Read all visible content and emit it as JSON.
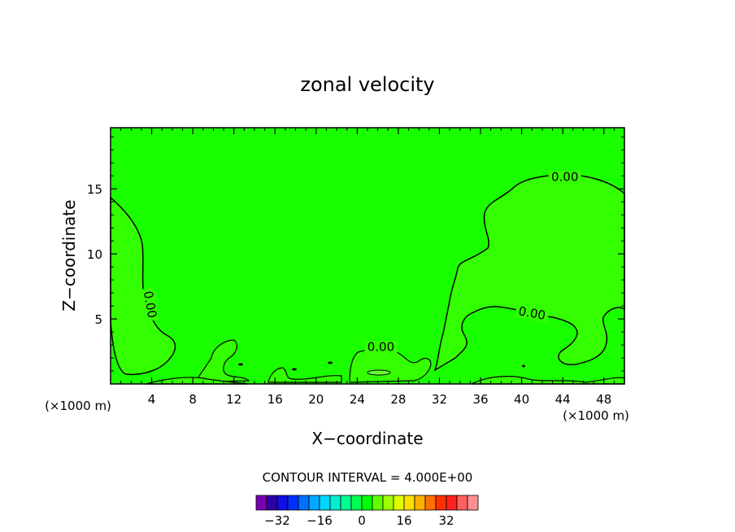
{
  "chart_data": {
    "type": "contour",
    "title": "zonal velocity",
    "xlabel": "X−coordinate",
    "ylabel": "Z−coordinate",
    "x_unit_left": "(×1000 m)",
    "x_unit_right": "(×1000 m)",
    "xlim": [
      0,
      50
    ],
    "ylim": [
      0,
      19.7
    ],
    "x_ticks": [
      4,
      8,
      12,
      16,
      20,
      24,
      28,
      32,
      36,
      40,
      44,
      48
    ],
    "x_ticklabels": [
      "4",
      "8",
      "12",
      "16",
      "20",
      "24",
      "28",
      "32",
      "36",
      "40",
      "44",
      "48"
    ],
    "y_ticks": [
      5,
      10,
      15
    ],
    "y_ticklabels": [
      "5",
      "10",
      "15"
    ],
    "contour_labels": [
      {
        "text": "0.00",
        "x": 44.2,
        "y": 15.9,
        "rotate": 0
      },
      {
        "text": "0.00",
        "x": 41.0,
        "y": 5.4,
        "rotate": 10
      },
      {
        "text": "0.00",
        "x": 26.3,
        "y": 2.8,
        "rotate": 0
      },
      {
        "text": "0.00",
        "x": 3.8,
        "y": 6.1,
        "rotate": 80
      }
    ],
    "contour_interval_text": "CONTOUR INTERVAL = 4.000E+00",
    "colorbar": {
      "colors": [
        "#7a00b3",
        "#2a00a8",
        "#1010e0",
        "#0030ff",
        "#0070ff",
        "#00a8ff",
        "#00d8ff",
        "#00f0d0",
        "#00ff90",
        "#00ff50",
        "#00ff00",
        "#60ff00",
        "#a0ff00",
        "#e0ff00",
        "#ffe000",
        "#ffb000",
        "#ff7000",
        "#ff3000",
        "#ff2020",
        "#ff6060",
        "#ff9090"
      ],
      "ticks": [
        -32,
        -16,
        0,
        16,
        32
      ],
      "ticklabels": [
        "−32",
        "−16",
        "0",
        "16",
        "32"
      ]
    },
    "colors": {
      "background_field": "#1aff00",
      "positive_region": "#33ff00",
      "contour_line": "#000000"
    }
  }
}
